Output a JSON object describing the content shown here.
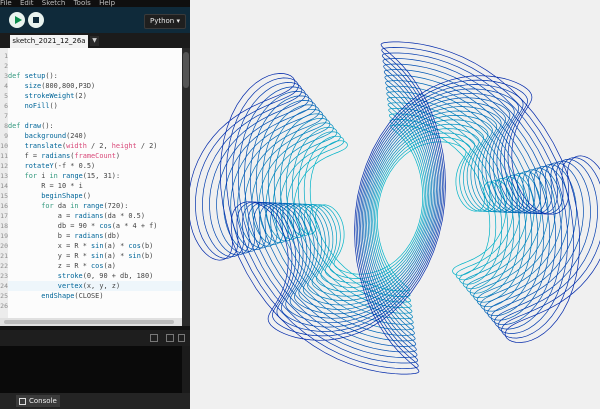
{
  "menu": {
    "items": [
      "File",
      "Edit",
      "Sketch",
      "Tools",
      "Help"
    ]
  },
  "toolbar": {
    "run_icon": "play-icon",
    "stop_icon": "stop-icon",
    "mode_label": "Python ▾"
  },
  "tabs": {
    "active_label": "sketch_2021_12_26a",
    "menu_glyph": "▼"
  },
  "editor": {
    "line_numbers": [
      "1",
      "2",
      "3",
      "4",
      "5",
      "6",
      "7",
      "8",
      "9",
      "10",
      "11",
      "12",
      "13",
      "14",
      "15",
      "16",
      "17",
      "18",
      "19",
      "20",
      "21",
      "22",
      "23",
      "24",
      "25",
      "26"
    ],
    "lines": [
      "",
      "",
      "def setup():",
      "    size(800,800,P3D)",
      "    strokeWeight(2)",
      "    noFill()",
      "",
      "def draw():",
      "    background(240)",
      "    translate(width / 2, height / 2)",
      "    f = radians(frameCount)",
      "    rotateY(-f * 0.5)",
      "    for i in range(15, 31):",
      "        R = 10 * i",
      "        beginShape()",
      "        for da in range(720):",
      "            a = radians(da * 0.5)",
      "            db = 90 * cos(a * 4 + f)",
      "            b = radians(db)",
      "            x = R * sin(a) * cos(b)",
      "            y = R * sin(a) * sin(b)",
      "            z = R * cos(a)",
      "            stroke(0, 90 + db, 180)",
      "            vertex(x, y, z)",
      "        endShape(CLOSE)",
      ""
    ]
  },
  "console": {
    "tab_label": "Console"
  },
  "colors": {
    "toolbar_bg": "#0f2a3a",
    "run_green": "#0a8b4c",
    "stroke_dark": "#0022aa",
    "stroke_light": "#1fb8c8"
  }
}
